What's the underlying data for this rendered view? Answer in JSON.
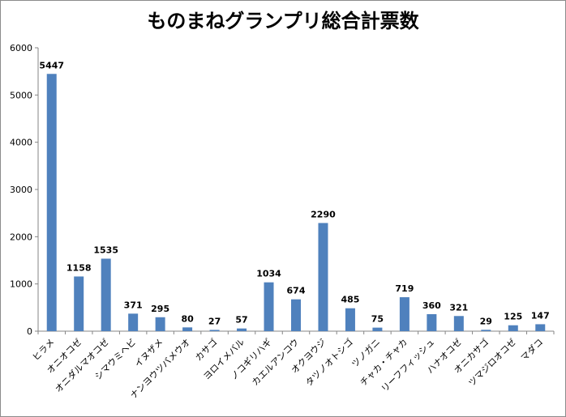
{
  "chart_data": {
    "type": "bar",
    "title": "ものまねグランプリ総合計票数",
    "xlabel": "",
    "ylabel": "",
    "ylim": [
      0,
      6000
    ],
    "yticks": [
      0,
      1000,
      2000,
      3000,
      4000,
      5000,
      6000
    ],
    "grid": false,
    "legend": "none",
    "bar_color": "#4f81bd",
    "categories": [
      "ヒラメ",
      "オニオコゼ",
      "オニダルマオコゼ",
      "シマウミヘビ",
      "イヌザメ",
      "ナンヨウツバメウオ",
      "カサゴ",
      "ヨロイメバル",
      "ノコギリハギ",
      "カエルアンコウ",
      "オクヨウジ",
      "タツノオトシゴ",
      "ツノガニ",
      "チャカ・チャカ",
      "リーフフィッシュ",
      "ハナオコゼ",
      "オニカサゴ",
      "ツマジロオコゼ",
      "マダコ"
    ],
    "values": [
      5447,
      1158,
      1535,
      371,
      295,
      80,
      27,
      57,
      1034,
      674,
      2290,
      485,
      75,
      719,
      360,
      321,
      29,
      125,
      147
    ]
  }
}
